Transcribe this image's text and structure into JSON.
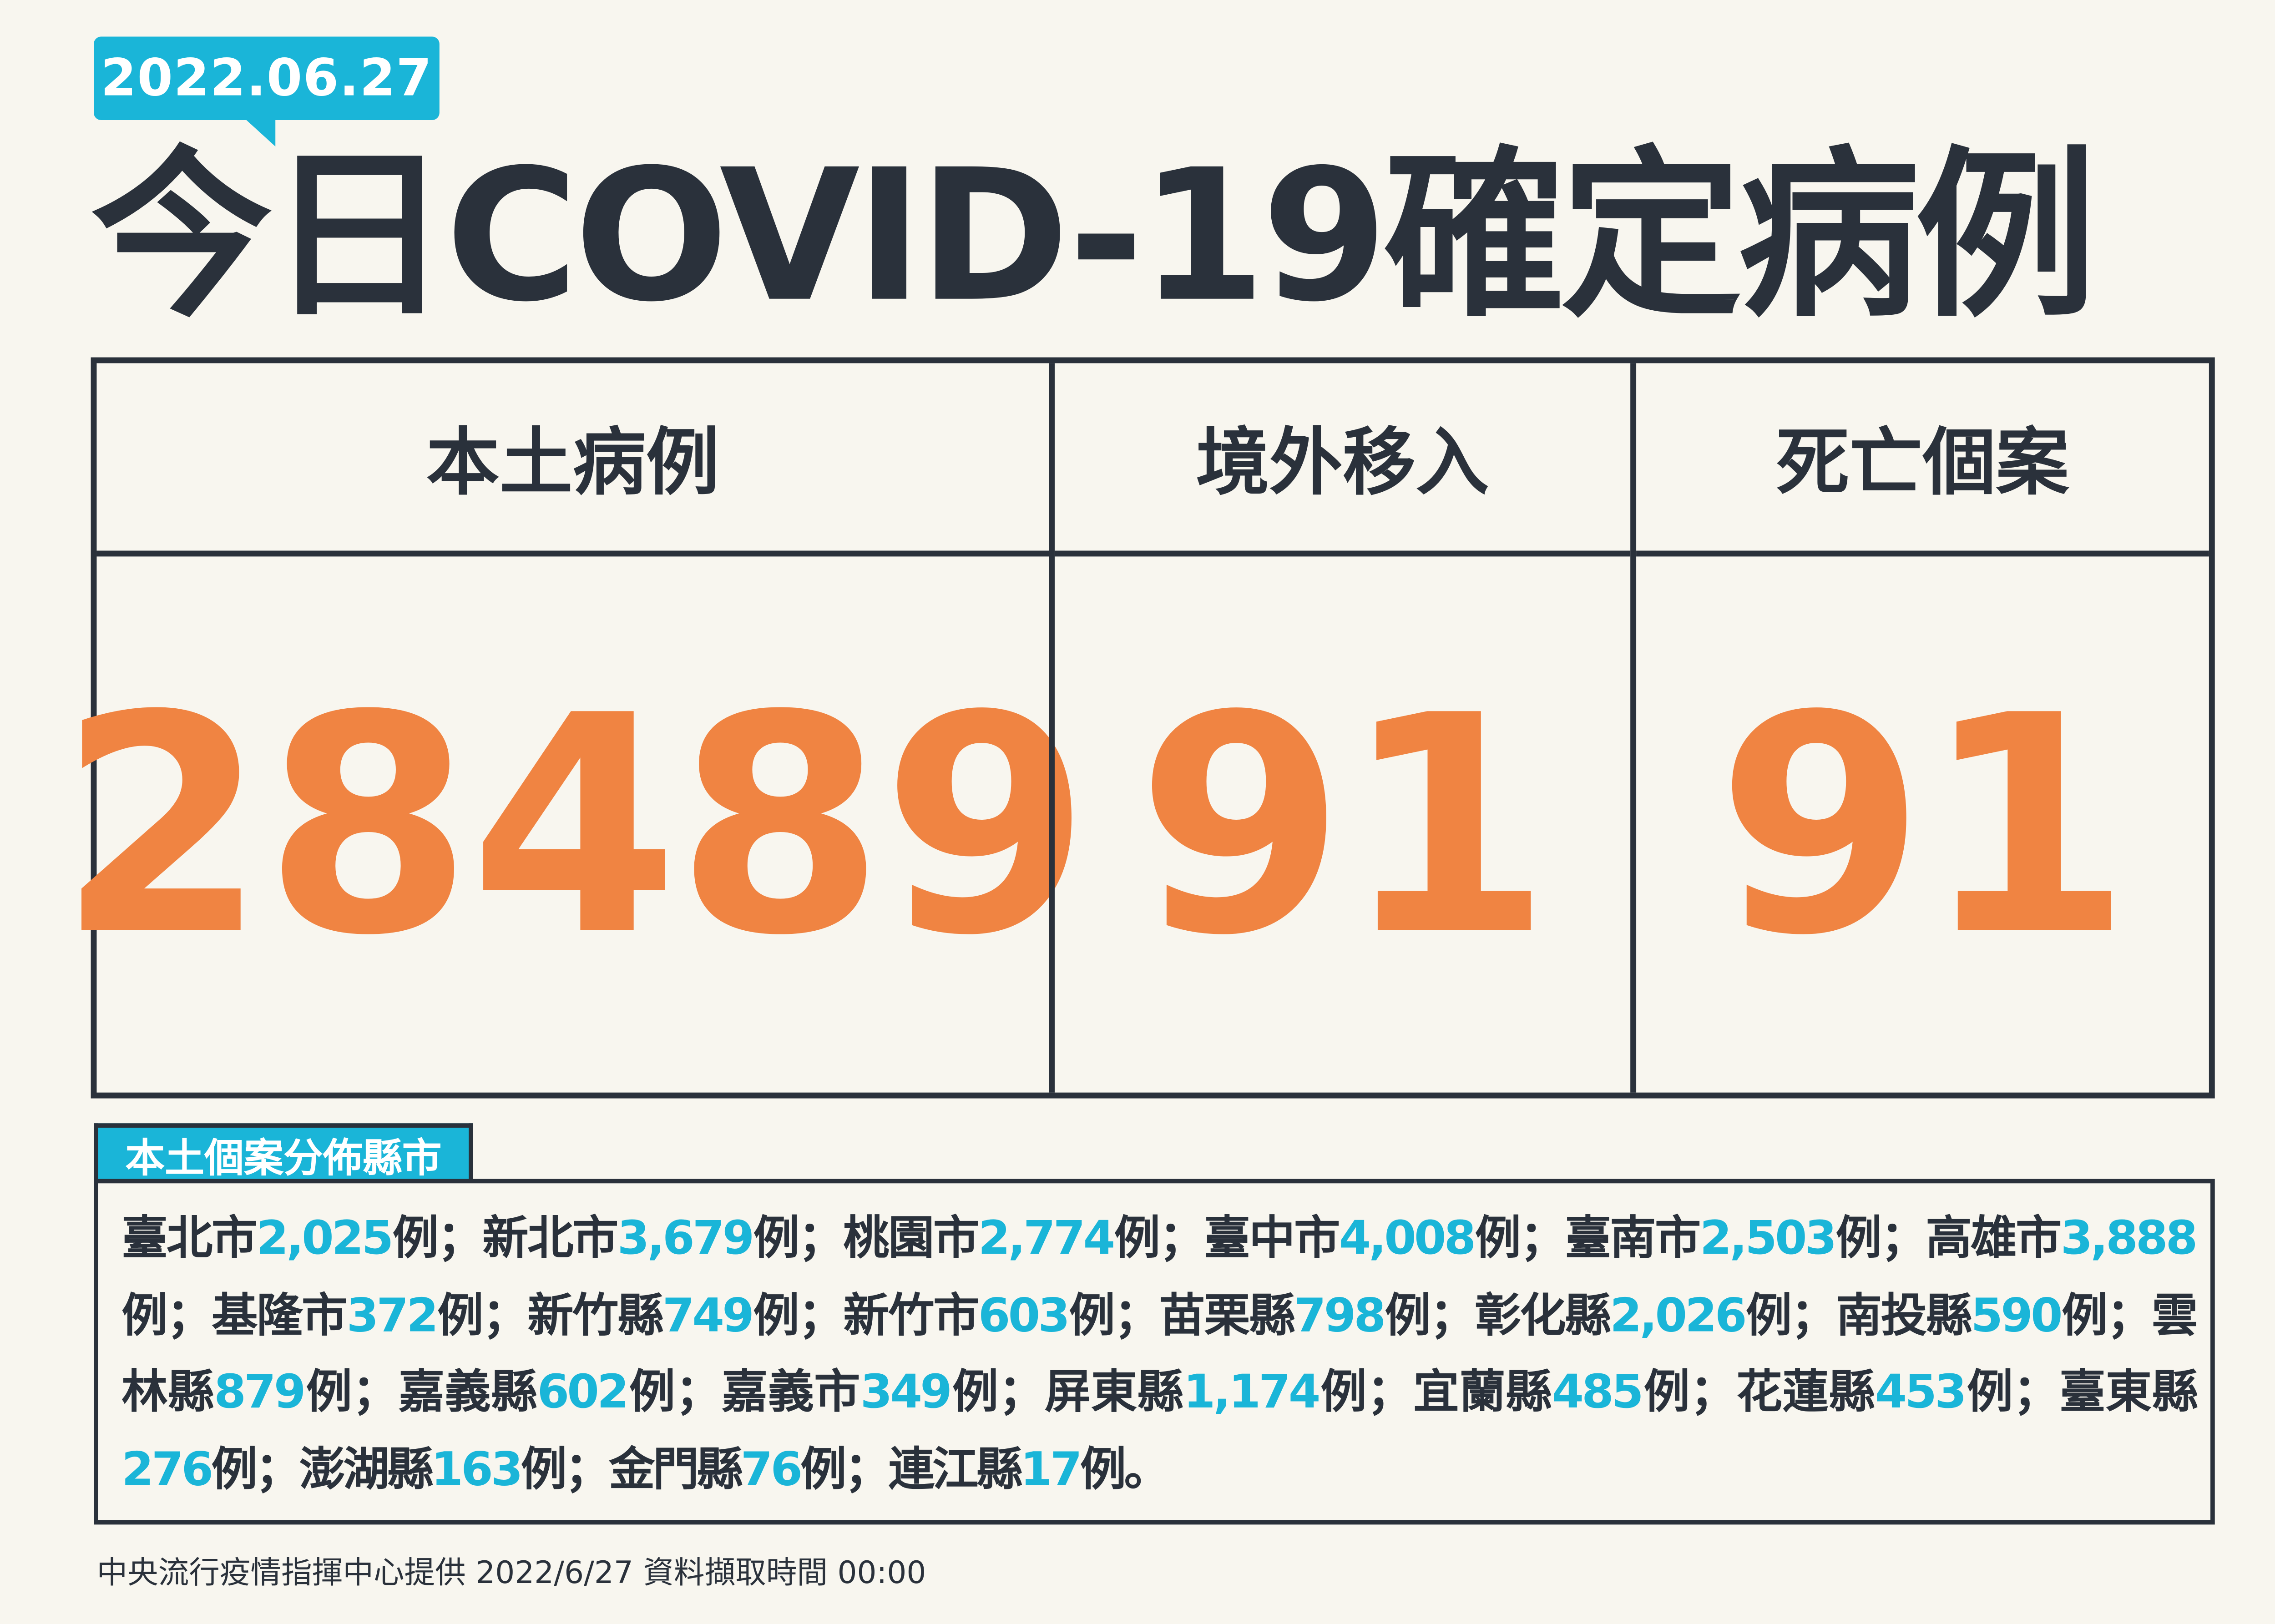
{
  "date": "2022.06.27",
  "title": "今日COVID-19確定病例",
  "colors": {
    "accent": "#1ab5d8",
    "number": "#f08442",
    "text": "#2a313b",
    "background": "#f8f6ef"
  },
  "stats": [
    {
      "label": "本土病例",
      "value": "28489"
    },
    {
      "label": "境外移入",
      "value": "91"
    },
    {
      "label": "死亡個案",
      "value": "91"
    }
  ],
  "distribution": {
    "title": "本土個案分佈縣市",
    "unit": "例",
    "separator": "；",
    "end": "。",
    "items": [
      {
        "name": "臺北市",
        "count": "2,025"
      },
      {
        "name": "新北市",
        "count": "3,679"
      },
      {
        "name": "桃園市",
        "count": "2,774"
      },
      {
        "name": "臺中市",
        "count": "4,008"
      },
      {
        "name": "臺南市",
        "count": "2,503"
      },
      {
        "name": "高雄市",
        "count": "3,888"
      },
      {
        "name": "基隆市",
        "count": "372"
      },
      {
        "name": "新竹縣",
        "count": "749"
      },
      {
        "name": "新竹市",
        "count": "603"
      },
      {
        "name": "苗栗縣",
        "count": "798"
      },
      {
        "name": "彰化縣",
        "count": "2,026"
      },
      {
        "name": "南投縣",
        "count": "590"
      },
      {
        "name": "雲林縣",
        "count": "879"
      },
      {
        "name": "嘉義縣",
        "count": "602"
      },
      {
        "name": "嘉義市",
        "count": "349"
      },
      {
        "name": "屏東縣",
        "count": "1,174"
      },
      {
        "name": "宜蘭縣",
        "count": "485"
      },
      {
        "name": "花蓮縣",
        "count": "453"
      },
      {
        "name": "臺東縣",
        "count": "276"
      },
      {
        "name": "澎湖縣",
        "count": "163"
      },
      {
        "name": "金門縣",
        "count": "76"
      },
      {
        "name": "連江縣",
        "count": "17"
      }
    ]
  },
  "footer": "中央流行疫情指揮中心提供  2022/6/27 資料擷取時間 00:00"
}
